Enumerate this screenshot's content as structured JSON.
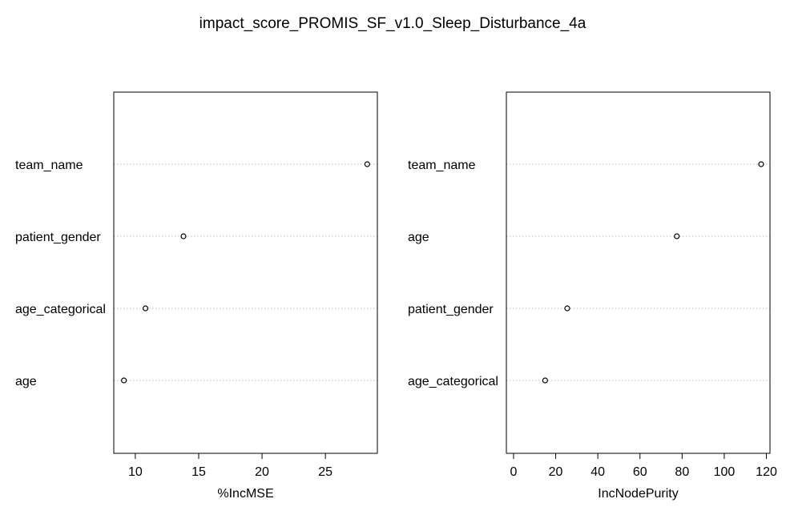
{
  "title": "impact_score_PROMIS_SF_v1.0_Sleep_Disturbance_4a",
  "chart_data": [
    {
      "type": "scatter",
      "subtype": "dotchart",
      "xlabel": "%IncMSE",
      "ylabel": "",
      "categories": [
        "team_name",
        "patient_gender",
        "age_categorical",
        "age"
      ],
      "values": [
        28.3,
        13.8,
        10.8,
        9.1
      ],
      "xlim": [
        8.3,
        29.1
      ],
      "xticks": [
        10,
        15,
        20,
        25
      ],
      "grid": "dotted horizontal per category",
      "legend": "none"
    },
    {
      "type": "scatter",
      "subtype": "dotchart",
      "xlabel": "IncNodePurity",
      "ylabel": "",
      "categories": [
        "team_name",
        "age",
        "patient_gender",
        "age_categorical"
      ],
      "values": [
        117.5,
        77.5,
        25.5,
        15.0
      ],
      "xlim": [
        -3.4,
        121.7
      ],
      "xticks": [
        0,
        20,
        40,
        60,
        80,
        100,
        120
      ],
      "grid": "dotted horizontal per category",
      "legend": "none"
    }
  ]
}
